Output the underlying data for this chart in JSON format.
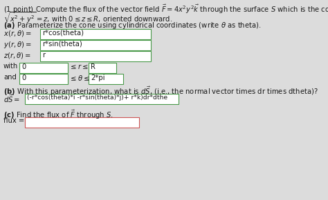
{
  "background_color": "#dcdcdc",
  "fig_width": 4.74,
  "fig_height": 2.9,
  "dpi": 100,
  "green": "#4a9a4a",
  "pink": "#cc5555",
  "text_color": "#1a1a1a",
  "lines": [
    "(1 point) Compute the flux of the vector field $\\vec{F} = 4x^2y^2\\vec{k}$ through the surface $S$ which is the cone",
    "$\\sqrt{x^2 + y^2} = z$, with $0 \\leq z \\leq R$, oriented downward.",
    "",
    "(a) Parameterize the cone using cylindrical coordinates (write $\\theta$ as theta).",
    "x_row",
    "y_row",
    "z_row",
    "with_row",
    "and_row",
    "",
    "(b) With this parameterization, what is $d\\vec{S}$, (i.e., the normal vector times dr times dtheta)?",
    "ds_row",
    "",
    "(c) Find the flux of $\\vec{F}$ through $S$.",
    "flux_row"
  ]
}
